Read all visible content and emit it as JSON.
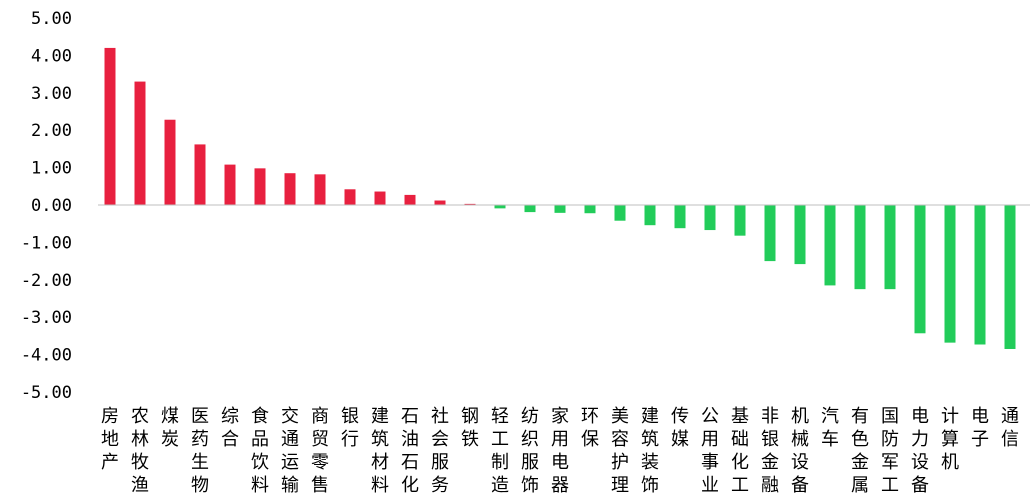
{
  "chart_data": {
    "type": "bar",
    "ylim": [
      -5,
      5
    ],
    "yticks": [
      "5.00",
      "4.00",
      "3.00",
      "2.00",
      "1.00",
      "0.00",
      "-1.00",
      "-2.00",
      "-3.00",
      "-4.00",
      "-5.00"
    ],
    "grid": false,
    "legend": "none",
    "colors": {
      "positive": "#e8203f",
      "negative": "#22cc5a",
      "axis": "#bfbfbf"
    },
    "categories": [
      "房地产",
      "农林牧渔",
      "煤炭",
      "医药生物",
      "综合",
      "食品饮料",
      "交通运输",
      "商贸零售",
      "银行",
      "建筑材料",
      "石油石化",
      "社会服务",
      "钢铁",
      "轻工制造",
      "纺织服饰",
      "家用电器",
      "环保",
      "美容护理",
      "建筑装饰",
      "传媒",
      "公用事业",
      "基础化工",
      "非银金融",
      "机械设备",
      "汽车",
      "有色金属",
      "国防军工",
      "电力设备",
      "计算机",
      "电子",
      "通信"
    ],
    "values": [
      4.2,
      3.3,
      2.28,
      1.62,
      1.08,
      0.98,
      0.85,
      0.82,
      0.42,
      0.36,
      0.27,
      0.12,
      0.03,
      -0.09,
      -0.19,
      -0.21,
      -0.22,
      -0.42,
      -0.54,
      -0.62,
      -0.67,
      -0.82,
      -1.5,
      -1.58,
      -2.15,
      -2.25,
      -2.25,
      -3.43,
      -3.68,
      -3.73,
      -3.85
    ]
  }
}
